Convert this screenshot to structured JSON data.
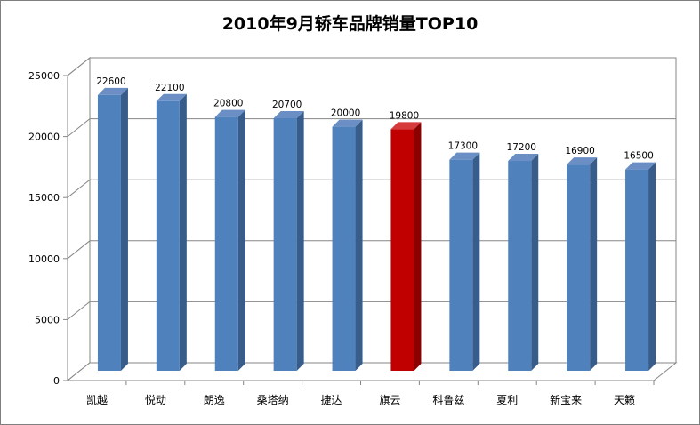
{
  "chart_data": {
    "type": "bar",
    "title": "2010年9月轿车品牌销量TOP10",
    "xlabel": "",
    "ylabel": "",
    "ylim": [
      0,
      25000
    ],
    "yticks": [
      0,
      5000,
      10000,
      15000,
      20000,
      25000
    ],
    "grid": true,
    "legend": "none",
    "categories": [
      "凯越",
      "悦动",
      "朗逸",
      "桑塔纳",
      "捷达",
      "旗云",
      "科鲁兹",
      "夏利",
      "新宝来",
      "天籁"
    ],
    "values": [
      22600,
      22100,
      20800,
      20700,
      20000,
      19800,
      17300,
      17200,
      16900,
      16500
    ],
    "data_labels": [
      "22600",
      "22100",
      "20800",
      "20700",
      "20000",
      "19800",
      "17300",
      "17200",
      "16900",
      "16500"
    ],
    "highlight_index": 5,
    "colors": {
      "bar": "#4f81bd",
      "bar_side": "#385d8a",
      "bar_top": "#6b8fc4",
      "highlight": "#c00000",
      "highlight_side": "#8b0000",
      "highlight_top": "#d63b3b",
      "grid": "#868686",
      "wall": "#ffffff"
    }
  }
}
